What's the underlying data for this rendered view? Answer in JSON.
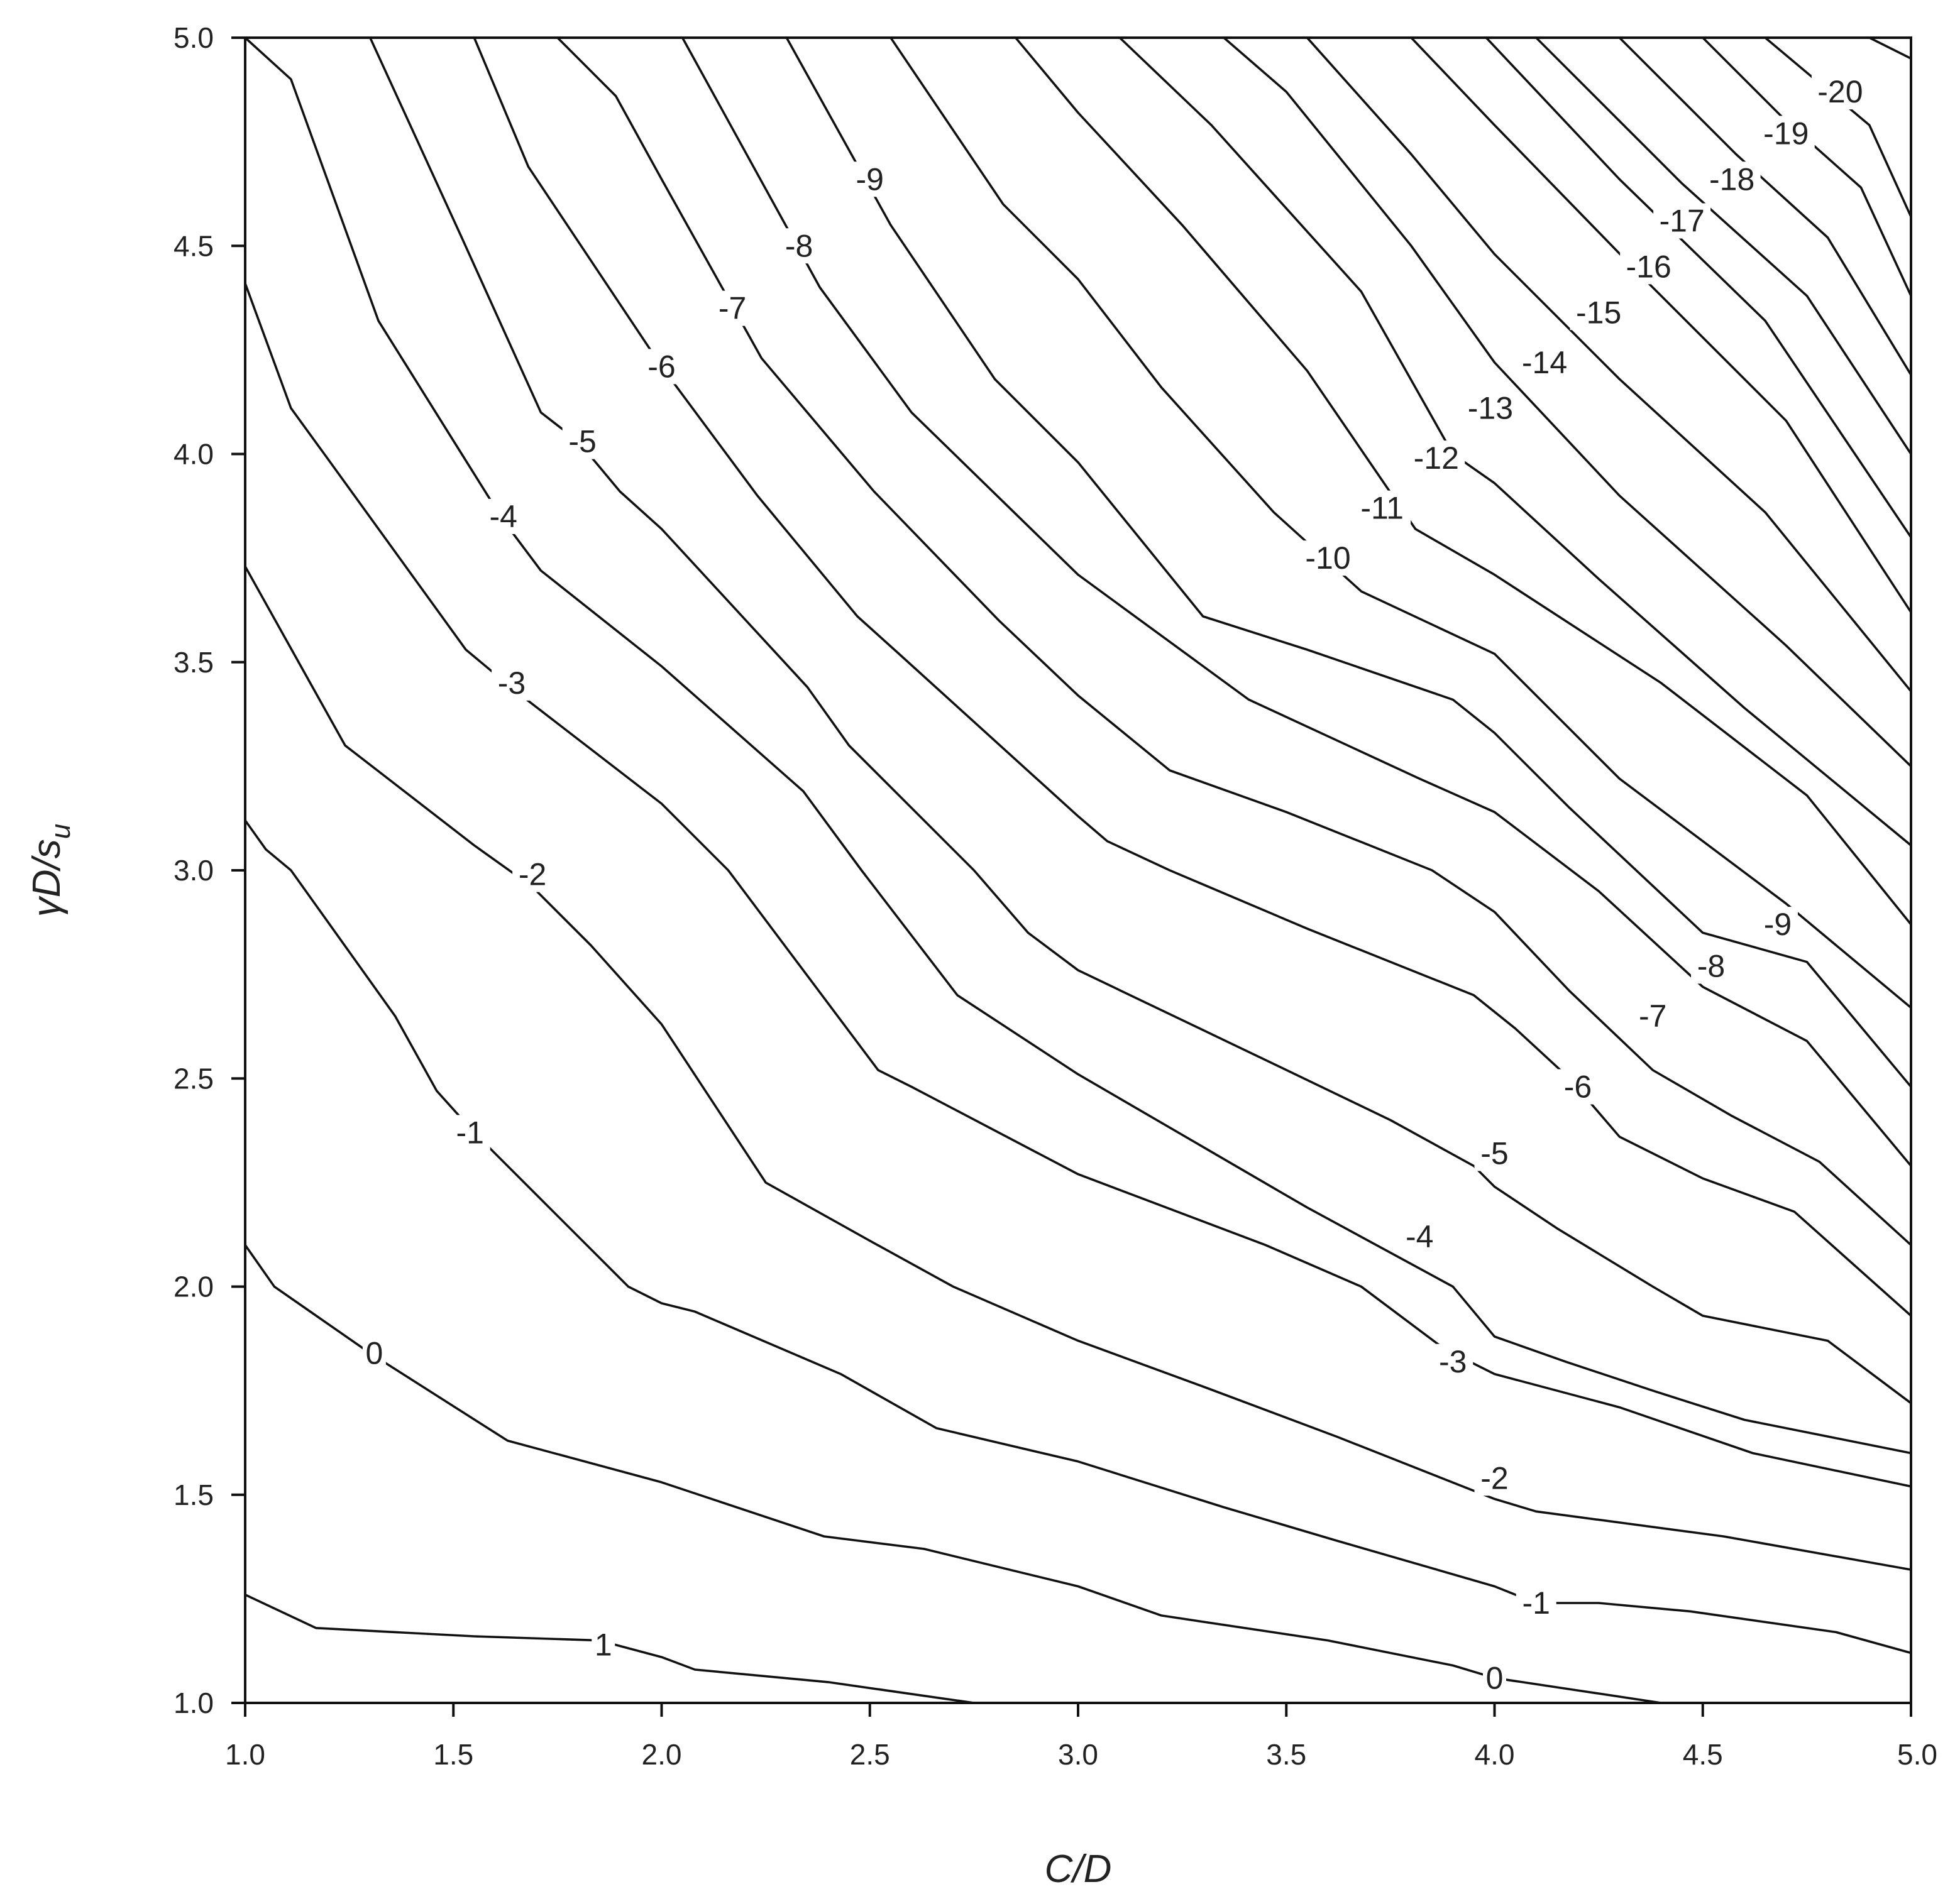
{
  "chart_data": {
    "type": "contour",
    "title": "",
    "xlabel": "C/D",
    "ylabel": "γD/s_u",
    "ylabel_parts": {
      "gamma": "γ",
      "main": "D/s",
      "sub": "u"
    },
    "xlim": [
      1.0,
      5.0
    ],
    "ylim": [
      1.0,
      5.0
    ],
    "xticks": [
      "1.0",
      "1.5",
      "2.0",
      "2.5",
      "3.0",
      "3.5",
      "4.0",
      "4.5",
      "5.0"
    ],
    "yticks": [
      "1.0",
      "1.5",
      "2.0",
      "2.5",
      "3.0",
      "3.5",
      "4.0",
      "4.5",
      "5.0"
    ],
    "grid": false,
    "legend": "none",
    "contours": [
      {
        "level": "1",
        "points": [
          [
            1.0,
            1.26
          ],
          [
            1.17,
            1.18
          ],
          [
            1.55,
            1.16
          ],
          [
            1.85,
            1.15
          ],
          [
            2.0,
            1.11
          ],
          [
            2.08,
            1.08
          ],
          [
            2.4,
            1.05
          ],
          [
            2.75,
            1.0
          ]
        ],
        "labels": [
          {
            "text": "1",
            "x": 1.86,
            "y": 1.14
          }
        ]
      },
      {
        "level": "0",
        "points": [
          [
            1.0,
            2.1
          ],
          [
            1.07,
            2.0
          ],
          [
            1.3,
            1.84
          ],
          [
            1.63,
            1.63
          ],
          [
            2.0,
            1.53
          ],
          [
            2.39,
            1.4
          ],
          [
            2.63,
            1.37
          ],
          [
            3.0,
            1.28
          ],
          [
            3.2,
            1.21
          ],
          [
            3.6,
            1.15
          ],
          [
            3.9,
            1.09
          ],
          [
            4.0,
            1.06
          ],
          [
            4.2,
            1.03
          ],
          [
            4.4,
            1.0
          ]
        ],
        "labels": [
          {
            "text": "0",
            "x": 1.31,
            "y": 1.84
          },
          {
            "text": "0",
            "x": 4.0,
            "y": 1.06
          }
        ]
      },
      {
        "level": "-1",
        "points": [
          [
            1.0,
            3.12
          ],
          [
            1.05,
            3.05
          ],
          [
            1.11,
            3.0
          ],
          [
            1.36,
            2.65
          ],
          [
            1.46,
            2.47
          ],
          [
            1.55,
            2.37
          ],
          [
            1.92,
            2.0
          ],
          [
            2.0,
            1.96
          ],
          [
            2.08,
            1.94
          ],
          [
            2.43,
            1.79
          ],
          [
            2.66,
            1.66
          ],
          [
            3.0,
            1.58
          ],
          [
            3.35,
            1.47
          ],
          [
            3.62,
            1.39
          ],
          [
            4.0,
            1.28
          ],
          [
            4.1,
            1.24
          ],
          [
            4.25,
            1.24
          ],
          [
            4.47,
            1.22
          ],
          [
            4.82,
            1.17
          ],
          [
            5.0,
            1.12
          ]
        ],
        "labels": [
          {
            "text": "-1",
            "x": 1.54,
            "y": 2.37
          },
          {
            "text": "-1",
            "x": 4.1,
            "y": 1.24
          }
        ]
      },
      {
        "level": "-2",
        "points": [
          [
            1.0,
            3.73
          ],
          [
            1.24,
            3.3
          ],
          [
            1.55,
            3.06
          ],
          [
            1.69,
            2.96
          ],
          [
            1.83,
            2.82
          ],
          [
            2.0,
            2.63
          ],
          [
            2.25,
            2.25
          ],
          [
            2.5,
            2.11
          ],
          [
            2.7,
            2.0
          ],
          [
            3.0,
            1.87
          ],
          [
            3.3,
            1.76
          ],
          [
            3.62,
            1.64
          ],
          [
            4.0,
            1.49
          ],
          [
            4.1,
            1.46
          ],
          [
            4.55,
            1.4
          ],
          [
            5.0,
            1.32
          ]
        ],
        "labels": [
          {
            "text": "-2",
            "x": 1.69,
            "y": 2.99
          },
          {
            "text": "-2",
            "x": 4.0,
            "y": 1.54
          }
        ]
      },
      {
        "level": "-3",
        "points": [
          [
            1.0,
            4.41
          ],
          [
            1.11,
            4.11
          ],
          [
            1.19,
            4.0
          ],
          [
            1.53,
            3.53
          ],
          [
            1.65,
            3.43
          ],
          [
            2.0,
            3.16
          ],
          [
            2.16,
            3.0
          ],
          [
            2.52,
            2.52
          ],
          [
            2.6,
            2.48
          ],
          [
            3.0,
            2.27
          ],
          [
            3.45,
            2.1
          ],
          [
            3.68,
            2.0
          ],
          [
            3.88,
            1.85
          ],
          [
            4.0,
            1.79
          ],
          [
            4.3,
            1.71
          ],
          [
            4.62,
            1.6
          ],
          [
            5.0,
            1.52
          ]
        ],
        "labels": [
          {
            "text": "-3",
            "x": 1.64,
            "y": 3.45
          },
          {
            "text": "-3",
            "x": 3.9,
            "y": 1.82
          }
        ]
      },
      {
        "level": "-4",
        "points": [
          [
            1.0,
            5.0
          ],
          [
            1.11,
            4.9
          ],
          [
            1.32,
            4.32
          ],
          [
            1.52,
            4.0
          ],
          [
            1.62,
            3.84
          ],
          [
            1.71,
            3.72
          ],
          [
            2.0,
            3.49
          ],
          [
            2.34,
            3.19
          ],
          [
            2.48,
            3.0
          ],
          [
            2.71,
            2.7
          ],
          [
            3.0,
            2.51
          ],
          [
            3.55,
            2.19
          ],
          [
            3.9,
            2.0
          ],
          [
            4.0,
            1.88
          ],
          [
            4.17,
            1.82
          ],
          [
            4.38,
            1.75
          ],
          [
            4.6,
            1.68
          ],
          [
            5.0,
            1.6
          ]
        ],
        "labels": [
          {
            "text": "-4",
            "x": 1.62,
            "y": 3.85
          },
          {
            "text": "-4",
            "x": 3.82,
            "y": 2.12
          }
        ]
      },
      {
        "level": "-5",
        "points": [
          [
            1.3,
            5.0
          ],
          [
            1.52,
            4.52
          ],
          [
            1.71,
            4.1
          ],
          [
            1.8,
            4.03
          ],
          [
            1.9,
            3.91
          ],
          [
            2.0,
            3.82
          ],
          [
            2.35,
            3.44
          ],
          [
            2.45,
            3.3
          ],
          [
            2.75,
            3.0
          ],
          [
            2.88,
            2.85
          ],
          [
            3.0,
            2.76
          ],
          [
            3.48,
            2.53
          ],
          [
            3.75,
            2.4
          ],
          [
            3.95,
            2.29
          ],
          [
            4.0,
            2.24
          ],
          [
            4.15,
            2.14
          ],
          [
            4.38,
            2.0
          ],
          [
            4.5,
            1.93
          ],
          [
            4.8,
            1.87
          ],
          [
            5.0,
            1.72
          ]
        ],
        "labels": [
          {
            "text": "-5",
            "x": 1.81,
            "y": 4.03
          },
          {
            "text": "-5",
            "x": 4.0,
            "y": 2.32
          }
        ]
      },
      {
        "level": "-6",
        "points": [
          [
            1.55,
            5.0
          ],
          [
            1.68,
            4.69
          ],
          [
            2.0,
            4.21
          ],
          [
            2.23,
            3.9
          ],
          [
            2.47,
            3.61
          ],
          [
            2.57,
            3.52
          ],
          [
            3.0,
            3.13
          ],
          [
            3.07,
            3.07
          ],
          [
            3.22,
            3.0
          ],
          [
            3.55,
            2.86
          ],
          [
            3.95,
            2.7
          ],
          [
            4.05,
            2.62
          ],
          [
            4.18,
            2.5
          ],
          [
            4.3,
            2.36
          ],
          [
            4.5,
            2.26
          ],
          [
            4.72,
            2.18
          ],
          [
            5.0,
            1.93
          ]
        ],
        "labels": [
          {
            "text": "-6",
            "x": 2.0,
            "y": 4.21
          },
          {
            "text": "-6",
            "x": 4.2,
            "y": 2.48
          }
        ]
      },
      {
        "level": "-7",
        "points": [
          [
            1.75,
            5.0
          ],
          [
            1.89,
            4.86
          ],
          [
            2.0,
            4.66
          ],
          [
            2.24,
            4.23
          ],
          [
            2.51,
            3.91
          ],
          [
            2.81,
            3.6
          ],
          [
            3.0,
            3.42
          ],
          [
            3.22,
            3.24
          ],
          [
            3.5,
            3.14
          ],
          [
            3.85,
            3.0
          ],
          [
            4.0,
            2.9
          ],
          [
            4.18,
            2.71
          ],
          [
            4.38,
            2.52
          ],
          [
            4.57,
            2.41
          ],
          [
            4.78,
            2.3
          ],
          [
            5.0,
            2.1
          ]
        ],
        "labels": [
          {
            "text": "-7",
            "x": 2.17,
            "y": 4.35
          },
          {
            "text": "-7",
            "x": 4.38,
            "y": 2.65
          }
        ]
      },
      {
        "level": "-8",
        "points": [
          [
            2.05,
            5.0
          ],
          [
            2.38,
            4.4
          ],
          [
            2.6,
            4.1
          ],
          [
            3.0,
            3.71
          ],
          [
            3.41,
            3.41
          ],
          [
            3.82,
            3.22
          ],
          [
            4.0,
            3.14
          ],
          [
            4.25,
            2.95
          ],
          [
            4.5,
            2.72
          ],
          [
            4.75,
            2.59
          ],
          [
            5.0,
            2.29
          ]
        ],
        "labels": [
          {
            "text": "-8",
            "x": 2.33,
            "y": 4.5
          },
          {
            "text": "-8",
            "x": 4.52,
            "y": 2.77
          }
        ]
      },
      {
        "level": "-9",
        "points": [
          [
            2.3,
            5.0
          ],
          [
            2.55,
            4.55
          ],
          [
            2.8,
            4.18
          ],
          [
            3.0,
            3.98
          ],
          [
            3.3,
            3.61
          ],
          [
            3.55,
            3.53
          ],
          [
            3.9,
            3.41
          ],
          [
            4.0,
            3.33
          ],
          [
            4.18,
            3.15
          ],
          [
            4.5,
            2.85
          ],
          [
            4.75,
            2.78
          ],
          [
            5.0,
            2.48
          ]
        ],
        "labels": [
          {
            "text": "-9",
            "x": 2.5,
            "y": 4.66
          },
          {
            "text": "-9",
            "x": 4.68,
            "y": 2.87
          }
        ]
      },
      {
        "level": "-10",
        "points": [
          [
            2.55,
            5.0
          ],
          [
            2.82,
            4.6
          ],
          [
            3.0,
            4.42
          ],
          [
            3.2,
            4.16
          ],
          [
            3.47,
            3.86
          ],
          [
            3.68,
            3.67
          ],
          [
            4.0,
            3.52
          ],
          [
            4.3,
            3.22
          ],
          [
            4.7,
            2.92
          ],
          [
            5.0,
            2.67
          ]
        ],
        "labels": [
          {
            "text": "-10",
            "x": 3.6,
            "y": 3.75
          }
        ]
      },
      {
        "level": "-11",
        "points": [
          [
            2.85,
            5.0
          ],
          [
            3.0,
            4.82
          ],
          [
            3.25,
            4.55
          ],
          [
            3.55,
            4.2
          ],
          [
            3.81,
            3.82
          ],
          [
            4.0,
            3.71
          ],
          [
            4.4,
            3.45
          ],
          [
            4.75,
            3.18
          ],
          [
            5.0,
            2.87
          ]
        ],
        "labels": [
          {
            "text": "-11",
            "x": 3.73,
            "y": 3.87
          }
        ]
      },
      {
        "level": "-12",
        "points": [
          [
            3.1,
            5.0
          ],
          [
            3.32,
            4.79
          ],
          [
            3.68,
            4.39
          ],
          [
            3.9,
            4.0
          ],
          [
            4.0,
            3.93
          ],
          [
            4.25,
            3.7
          ],
          [
            4.6,
            3.39
          ],
          [
            5.0,
            3.06
          ]
        ],
        "labels": [
          {
            "text": "-12",
            "x": 3.86,
            "y": 3.99
          }
        ]
      },
      {
        "level": "-13",
        "points": [
          [
            3.35,
            5.0
          ],
          [
            3.5,
            4.87
          ],
          [
            3.8,
            4.5
          ],
          [
            4.0,
            4.22
          ],
          [
            4.3,
            3.9
          ],
          [
            4.7,
            3.54
          ],
          [
            5.0,
            3.25
          ]
        ],
        "labels": [
          {
            "text": "-13",
            "x": 3.99,
            "y": 4.11
          }
        ]
      },
      {
        "level": "-14",
        "points": [
          [
            3.55,
            5.0
          ],
          [
            3.8,
            4.72
          ],
          [
            4.0,
            4.48
          ],
          [
            4.3,
            4.18
          ],
          [
            4.65,
            3.86
          ],
          [
            5.0,
            3.43
          ]
        ],
        "labels": [
          {
            "text": "-14",
            "x": 4.12,
            "y": 4.22
          }
        ]
      },
      {
        "level": "-15",
        "points": [
          [
            3.8,
            5.0
          ],
          [
            4.0,
            4.79
          ],
          [
            4.35,
            4.43
          ],
          [
            4.7,
            4.08
          ],
          [
            5.0,
            3.62
          ]
        ],
        "labels": [
          {
            "text": "-15",
            "x": 4.25,
            "y": 4.34
          }
        ]
      },
      {
        "level": "-16",
        "points": [
          [
            3.98,
            5.0
          ],
          [
            4.3,
            4.66
          ],
          [
            4.65,
            4.32
          ],
          [
            5.0,
            3.8
          ]
        ],
        "labels": [
          {
            "text": "-16",
            "x": 4.37,
            "y": 4.45
          }
        ]
      },
      {
        "level": "-17",
        "points": [
          [
            4.1,
            5.0
          ],
          [
            4.45,
            4.65
          ],
          [
            4.75,
            4.38
          ],
          [
            5.0,
            4.0
          ]
        ],
        "labels": [
          {
            "text": "-17",
            "x": 4.45,
            "y": 4.56
          }
        ]
      },
      {
        "level": "-18",
        "points": [
          [
            4.3,
            5.0
          ],
          [
            4.58,
            4.72
          ],
          [
            4.8,
            4.52
          ],
          [
            5.0,
            4.19
          ]
        ],
        "labels": [
          {
            "text": "-18",
            "x": 4.57,
            "y": 4.66
          }
        ]
      },
      {
        "level": "-19",
        "points": [
          [
            4.5,
            5.0
          ],
          [
            4.7,
            4.8
          ],
          [
            4.88,
            4.64
          ],
          [
            5.0,
            4.38
          ]
        ],
        "labels": [
          {
            "text": "-19",
            "x": 4.7,
            "y": 4.77
          }
        ]
      },
      {
        "level": "-20",
        "points": [
          [
            4.65,
            5.0
          ],
          [
            4.9,
            4.79
          ],
          [
            5.0,
            4.57
          ]
        ],
        "labels": [
          {
            "text": "-20",
            "x": 4.83,
            "y": 4.87
          }
        ]
      },
      {
        "level": "",
        "points": [
          [
            4.9,
            5.0
          ],
          [
            5.0,
            4.95
          ]
        ],
        "labels": []
      }
    ]
  }
}
